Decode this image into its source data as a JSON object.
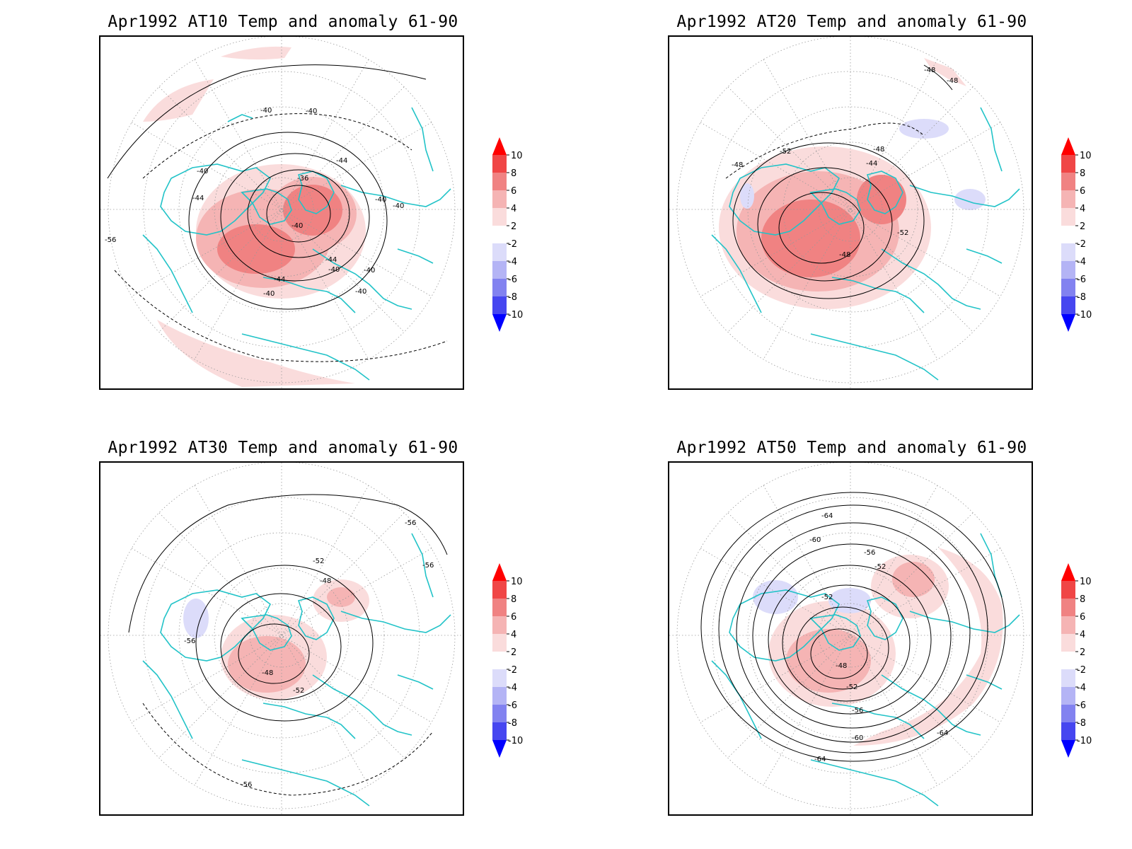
{
  "panels": [
    {
      "title": "Apr1992 AT10 Temp and anomaly 61-90",
      "contour_labels": [
        "-40",
        "-40",
        "-44",
        "-40",
        "-44",
        "-36",
        "-40",
        "-40",
        "-40",
        "-44",
        "-40",
        "-40",
        "-44",
        "-40",
        "-40",
        "-56"
      ]
    },
    {
      "title": "Apr1992 AT20 Temp and anomaly 61-90",
      "contour_labels": [
        "-48",
        "-48",
        "-52",
        "-48",
        "-48",
        "-44",
        "-52",
        "-48"
      ]
    },
    {
      "title": "Apr1992 AT30 Temp and anomaly 61-90",
      "contour_labels": [
        "-56",
        "-56",
        "-52",
        "-48",
        "-56",
        "-48",
        "-52",
        "-56"
      ]
    },
    {
      "title": "Apr1992 AT50 Temp and anomaly 61-90",
      "contour_labels": [
        "-64",
        "-60",
        "-56",
        "-52",
        "-52",
        "-48",
        "-52",
        "-56",
        "-60",
        "-64",
        "-64"
      ]
    }
  ],
  "colorbar": {
    "labels": [
      "10",
      "8",
      "6",
      "4",
      "2",
      "-2",
      "-4",
      "-6",
      "-8",
      "-10"
    ],
    "colors": [
      "#ff0000",
      "#f04646",
      "#f08282",
      "#f5b4b4",
      "#fadcdc",
      "#ffffff",
      "#dcdcfa",
      "#b4b4f5",
      "#8282f0",
      "#4646f0",
      "#0000ff"
    ]
  },
  "colors": {
    "coastline": "#22c3c8",
    "contour": "#000000",
    "grid": "#9a9a9a",
    "frame": "#000000"
  }
}
